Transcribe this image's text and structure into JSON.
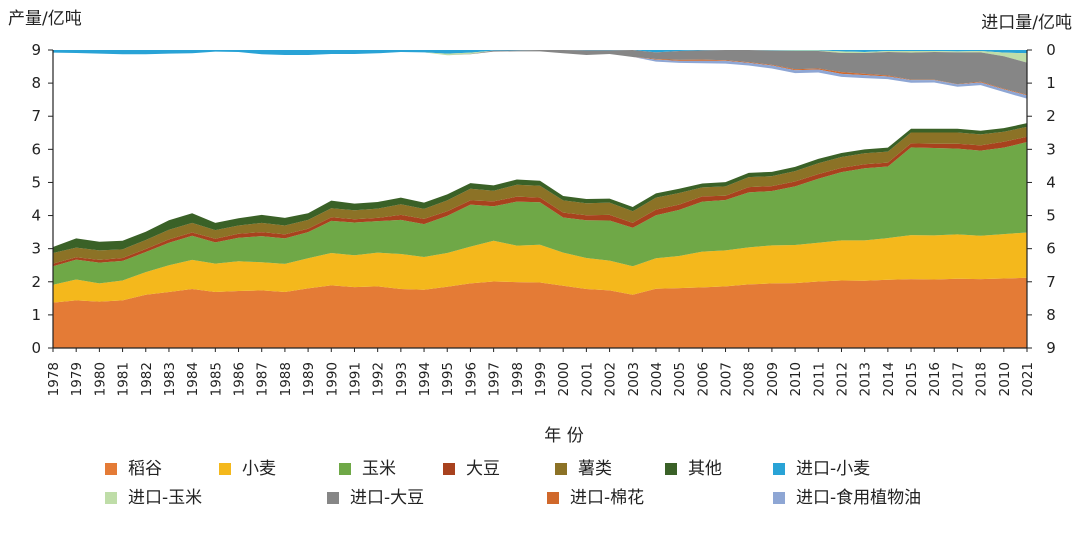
{
  "chart_data": {
    "type": "area",
    "ylabel_left": "产量/亿吨",
    "ylabel_right": "进口量/亿吨",
    "xlabel": "年 份",
    "ylim_left": [
      0,
      9
    ],
    "ylim_right_inverted": [
      0,
      9
    ],
    "yticks": [
      "0",
      "1",
      "2",
      "3",
      "4",
      "5",
      "6",
      "7",
      "8",
      "9"
    ],
    "x": [
      "1978",
      "1979",
      "1980",
      "1981",
      "1982",
      "1983",
      "1984",
      "1985",
      "1986",
      "1987",
      "1988",
      "1989",
      "1990",
      "1991",
      "1992",
      "1993",
      "1994",
      "1995",
      "1996",
      "1997",
      "1998",
      "1999",
      "2000",
      "2001",
      "2002",
      "2003",
      "2004",
      "2005",
      "2006",
      "2007",
      "2008",
      "2009",
      "2010",
      "2011",
      "2012",
      "2013",
      "2014",
      "2015",
      "2016",
      "2017",
      "2018",
      "2010",
      "2021"
    ],
    "production_series": [
      {
        "name": "稻谷",
        "color": "#E47B36",
        "values": [
          1.37,
          1.44,
          1.4,
          1.44,
          1.61,
          1.69,
          1.78,
          1.69,
          1.72,
          1.74,
          1.69,
          1.8,
          1.89,
          1.84,
          1.86,
          1.78,
          1.76,
          1.85,
          1.95,
          2.01,
          1.99,
          1.98,
          1.88,
          1.78,
          1.74,
          1.61,
          1.79,
          1.81,
          1.83,
          1.86,
          1.92,
          1.95,
          1.96,
          2.01,
          2.04,
          2.03,
          2.06,
          2.08,
          2.07,
          2.09,
          2.08,
          2.1,
          2.12
        ]
      },
      {
        "name": "小麦",
        "color": "#F4B81C",
        "values": [
          0.54,
          0.63,
          0.55,
          0.6,
          0.68,
          0.81,
          0.88,
          0.86,
          0.9,
          0.85,
          0.85,
          0.91,
          0.98,
          0.96,
          1.02,
          1.06,
          0.99,
          1.02,
          1.11,
          1.23,
          1.1,
          1.14,
          1.0,
          0.94,
          0.9,
          0.86,
          0.92,
          0.97,
          1.08,
          1.09,
          1.12,
          1.15,
          1.15,
          1.17,
          1.21,
          1.22,
          1.26,
          1.33,
          1.33,
          1.34,
          1.31,
          1.34,
          1.37
        ]
      },
      {
        "name": "玉米",
        "color": "#6FA847",
        "values": [
          0.56,
          0.6,
          0.63,
          0.59,
          0.61,
          0.68,
          0.73,
          0.64,
          0.71,
          0.79,
          0.77,
          0.79,
          0.97,
          0.99,
          0.95,
          1.03,
          0.99,
          1.12,
          1.27,
          1.04,
          1.33,
          1.28,
          1.06,
          1.14,
          1.21,
          1.16,
          1.3,
          1.39,
          1.51,
          1.52,
          1.66,
          1.64,
          1.77,
          1.93,
          2.06,
          2.18,
          2.16,
          2.65,
          2.64,
          2.59,
          2.57,
          2.61,
          2.73
        ]
      },
      {
        "name": "大豆",
        "color": "#A8421E",
        "values": [
          0.08,
          0.07,
          0.08,
          0.09,
          0.09,
          0.1,
          0.1,
          0.11,
          0.12,
          0.12,
          0.12,
          0.1,
          0.11,
          0.1,
          0.1,
          0.15,
          0.16,
          0.14,
          0.13,
          0.15,
          0.15,
          0.14,
          0.15,
          0.15,
          0.17,
          0.15,
          0.17,
          0.16,
          0.16,
          0.13,
          0.16,
          0.15,
          0.15,
          0.14,
          0.13,
          0.12,
          0.12,
          0.12,
          0.13,
          0.15,
          0.16,
          0.18,
          0.16
        ]
      },
      {
        "name": "薯类",
        "color": "#8C7226",
        "values": [
          0.32,
          0.29,
          0.29,
          0.26,
          0.27,
          0.29,
          0.29,
          0.26,
          0.25,
          0.28,
          0.27,
          0.27,
          0.27,
          0.27,
          0.28,
          0.32,
          0.3,
          0.33,
          0.35,
          0.32,
          0.36,
          0.36,
          0.37,
          0.36,
          0.37,
          0.35,
          0.36,
          0.35,
          0.27,
          0.28,
          0.3,
          0.3,
          0.31,
          0.33,
          0.33,
          0.33,
          0.33,
          0.33,
          0.34,
          0.34,
          0.33,
          0.3,
          0.3
        ]
      },
      {
        "name": "其他",
        "color": "#3A6127",
        "values": [
          0.18,
          0.28,
          0.26,
          0.26,
          0.25,
          0.29,
          0.29,
          0.22,
          0.22,
          0.24,
          0.23,
          0.2,
          0.23,
          0.2,
          0.2,
          0.2,
          0.19,
          0.18,
          0.17,
          0.16,
          0.16,
          0.15,
          0.13,
          0.13,
          0.12,
          0.13,
          0.13,
          0.13,
          0.12,
          0.13,
          0.13,
          0.13,
          0.13,
          0.13,
          0.12,
          0.12,
          0.12,
          0.11,
          0.11,
          0.11,
          0.11,
          0.11,
          0.11
        ]
      }
    ],
    "import_series": [
      {
        "name": "进口-小麦",
        "color": "#29A3D6",
        "values": [
          0.08,
          0.09,
          0.11,
          0.13,
          0.13,
          0.11,
          0.1,
          0.05,
          0.06,
          0.13,
          0.15,
          0.15,
          0.12,
          0.12,
          0.1,
          0.06,
          0.07,
          0.11,
          0.08,
          0.02,
          0.01,
          0.0,
          0.0,
          0.01,
          0.01,
          0.0,
          0.07,
          0.03,
          0.01,
          0.0,
          0.0,
          0.01,
          0.01,
          0.01,
          0.04,
          0.06,
          0.03,
          0.03,
          0.03,
          0.04,
          0.03,
          0.08,
          0.1
        ]
      },
      {
        "name": "进口-玉米",
        "color": "#BFDDA8",
        "values": [
          0.0,
          0.0,
          0.0,
          0.0,
          0.0,
          0.0,
          0.0,
          0.0,
          0.0,
          0.0,
          0.0,
          0.0,
          0.0,
          0.0,
          0.0,
          0.0,
          0.0,
          0.05,
          0.04,
          0.0,
          0.0,
          0.0,
          0.0,
          0.0,
          0.0,
          0.0,
          0.0,
          0.0,
          0.0,
          0.0,
          0.0,
          0.01,
          0.02,
          0.02,
          0.05,
          0.03,
          0.03,
          0.05,
          0.03,
          0.03,
          0.04,
          0.11,
          0.28
        ]
      },
      {
        "name": "进口-大豆",
        "color": "#868686",
        "values": [
          0.0,
          0.0,
          0.0,
          0.0,
          0.0,
          0.0,
          0.0,
          0.0,
          0.0,
          0.0,
          0.0,
          0.0,
          0.0,
          0.0,
          0.0,
          0.0,
          0.0,
          0.0,
          0.01,
          0.03,
          0.03,
          0.04,
          0.1,
          0.14,
          0.11,
          0.21,
          0.2,
          0.27,
          0.28,
          0.31,
          0.37,
          0.43,
          0.55,
          0.53,
          0.58,
          0.63,
          0.71,
          0.82,
          0.84,
          0.96,
          0.89,
          0.98,
          0.97
        ]
      },
      {
        "name": "进口-棉花",
        "color": "#D0682B",
        "values": [
          0.0,
          0.0,
          0.0,
          0.0,
          0.0,
          0.0,
          0.0,
          0.0,
          0.0,
          0.0,
          0.0,
          0.0,
          0.0,
          0.0,
          0.0,
          0.0,
          0.0,
          0.0,
          0.0,
          0.0,
          0.0,
          0.0,
          0.0,
          0.0,
          0.0,
          0.0,
          0.02,
          0.03,
          0.04,
          0.02,
          0.02,
          0.02,
          0.03,
          0.03,
          0.05,
          0.04,
          0.03,
          0.01,
          0.01,
          0.01,
          0.02,
          0.02,
          0.02
        ]
      },
      {
        "name": "进口-食用植物油",
        "color": "#8EA6D4",
        "values": [
          0.0,
          0.0,
          0.0,
          0.0,
          0.0,
          0.0,
          0.0,
          0.0,
          0.0,
          0.0,
          0.0,
          0.0,
          0.0,
          0.0,
          0.0,
          0.0,
          0.0,
          0.0,
          0.0,
          0.0,
          0.0,
          0.0,
          0.0,
          0.0,
          0.0,
          0.0,
          0.06,
          0.06,
          0.07,
          0.08,
          0.08,
          0.09,
          0.09,
          0.09,
          0.09,
          0.09,
          0.08,
          0.08,
          0.07,
          0.07,
          0.08,
          0.08,
          0.1
        ]
      }
    ],
    "legend_position": "bottom",
    "grid": false
  }
}
